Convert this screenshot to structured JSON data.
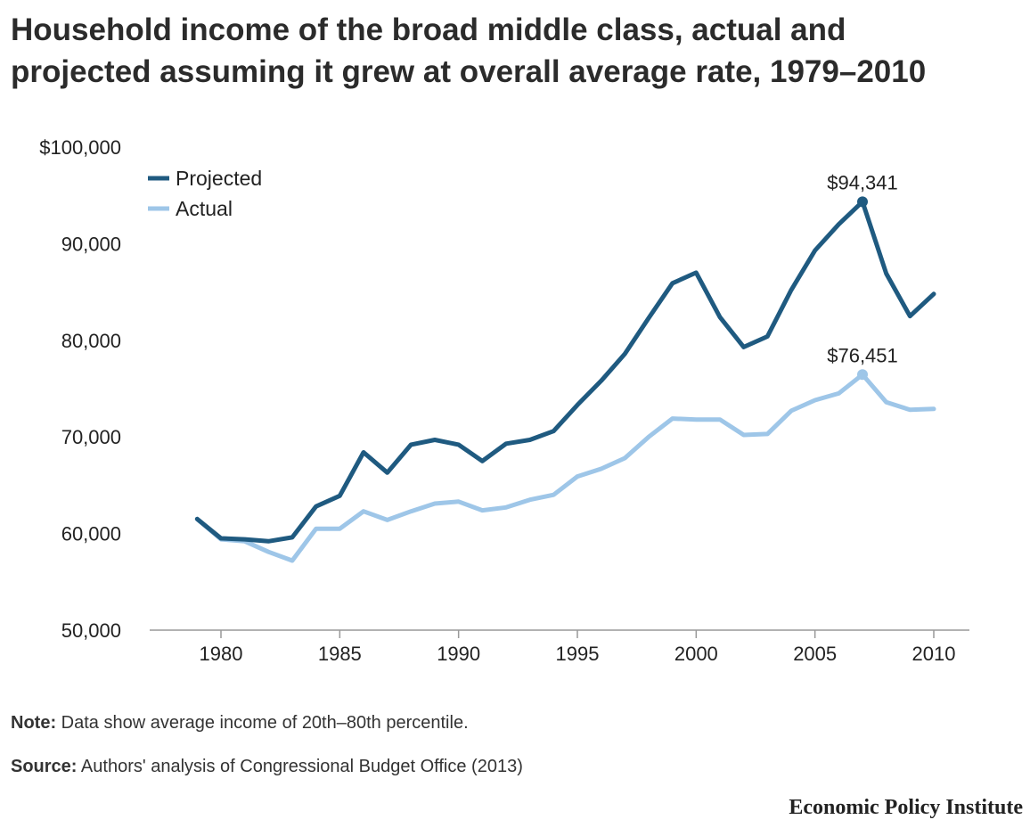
{
  "title_lines": [
    "Household income of the broad middle class, actual and",
    "projected assuming it grew at overall average rate, 1979–2010"
  ],
  "note_label": "Note:",
  "note_text": " Data show average income of 20th–80th percentile.",
  "source_label": "Source:",
  "source_text": " Authors' analysis of Congressional Budget Office (2013)",
  "brand": "Economic Policy Institute",
  "colors": {
    "projected": "#1f5a80",
    "actual": "#9ec6e8",
    "axis": "#999999"
  },
  "chart_data": {
    "type": "line",
    "title": "Household income of the broad middle class, actual and projected assuming it grew at overall average rate, 1979–2010",
    "xlabel": "",
    "ylabel": "",
    "xlim": [
      1977,
      2011.5
    ],
    "ylim": [
      50000,
      100000
    ],
    "x_ticks": [
      1980,
      1985,
      1990,
      1995,
      2000,
      2005,
      2010
    ],
    "y_ticks": [
      50000,
      60000,
      70000,
      80000,
      90000,
      100000
    ],
    "y_tick_labels": [
      "50,000",
      "60,000",
      "70,000",
      "80,000",
      "90,000",
      "$100,000"
    ],
    "legend_position": "top-left",
    "grid": false,
    "x": [
      1979,
      1980,
      1981,
      1982,
      1983,
      1984,
      1985,
      1986,
      1987,
      1988,
      1989,
      1990,
      1991,
      1992,
      1993,
      1994,
      1995,
      1996,
      1997,
      1998,
      1999,
      2000,
      2001,
      2002,
      2003,
      2004,
      2005,
      2006,
      2007,
      2008,
      2009,
      2010
    ],
    "series": [
      {
        "name": "Projected",
        "color": "#1f5a80",
        "values": [
          61500,
          59500,
          59400,
          59200,
          59600,
          62800,
          63900,
          68400,
          66300,
          69200,
          69700,
          69200,
          67500,
          69300,
          69700,
          70600,
          73300,
          75800,
          78600,
          82300,
          85900,
          87000,
          82400,
          79300,
          80400,
          85200,
          89300,
          92000,
          94341,
          86900,
          82500,
          84800
        ]
      },
      {
        "name": "Actual",
        "color": "#9ec6e8",
        "values": [
          61500,
          59400,
          59200,
          58100,
          57200,
          60500,
          60500,
          62300,
          61400,
          62300,
          63100,
          63300,
          62400,
          62700,
          63500,
          64000,
          65900,
          66700,
          67800,
          70000,
          71900,
          71800,
          71800,
          70200,
          70300,
          72700,
          73800,
          74500,
          76451,
          73600,
          72800,
          72900
        ]
      }
    ],
    "annotations": [
      {
        "series": "Projected",
        "x": 2007,
        "text": "$94,341"
      },
      {
        "series": "Actual",
        "x": 2007,
        "text": "$76,451"
      }
    ]
  }
}
